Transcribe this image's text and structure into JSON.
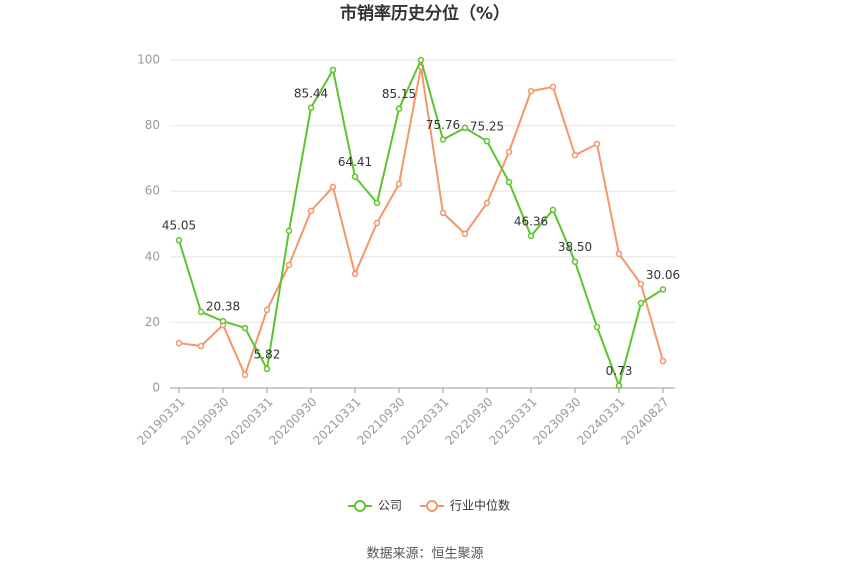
{
  "chart_data": {
    "type": "line",
    "title": "市销率历史分位（%）",
    "categories": [
      "20190331",
      null,
      "20190930",
      null,
      "20200331",
      null,
      "20200930",
      null,
      "20210331",
      null,
      "20210930",
      null,
      "20220331",
      null,
      "20220930",
      null,
      "20230331",
      null,
      "20230930",
      null,
      "20240331",
      null,
      "20240827"
    ],
    "series": [
      {
        "name": "公司",
        "color": "#5cc42c",
        "values": [
          45.05,
          23.2,
          20.38,
          18.3,
          5.82,
          47.9,
          85.44,
          97.0,
          64.41,
          56.4,
          85.15,
          100,
          75.76,
          79.3,
          75.25,
          62.8,
          46.36,
          54.3,
          38.5,
          18.6,
          0.73,
          25.9,
          30.06
        ],
        "value_labels": [
          "45.05",
          null,
          "20.38",
          null,
          "5.82",
          null,
          "85.44",
          null,
          "64.41",
          null,
          "85.15",
          null,
          "75.76",
          null,
          "75.25",
          null,
          "46.36",
          null,
          "38.50",
          null,
          "0.73",
          null,
          "30.06"
        ]
      },
      {
        "name": "行业中位数",
        "color": "#f4956a",
        "values": [
          13.7,
          12.8,
          19.2,
          4.0,
          23.8,
          37.5,
          54.0,
          61.3,
          34.8,
          50.3,
          62.2,
          97.9,
          53.4,
          47.0,
          56.4,
          72.0,
          90.5,
          91.8,
          71.0,
          74.4,
          40.9,
          31.7,
          8.2
        ]
      }
    ],
    "ylim": [
      0,
      100
    ],
    "yticks": [
      0,
      20,
      40,
      60,
      80,
      100
    ],
    "grid": true,
    "source": "数据来源：恒生聚源"
  }
}
